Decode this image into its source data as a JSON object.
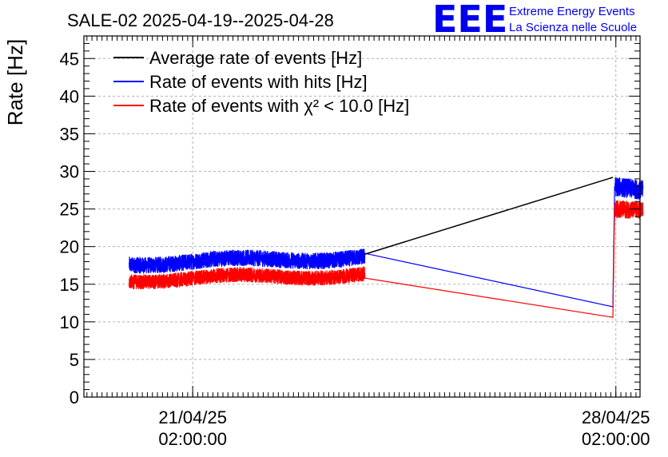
{
  "header": {
    "title": "SALE-02 2025-04-19--2025-04-28",
    "logo_letters": "EEE",
    "logo_line1": "Extreme Energy Events",
    "logo_line2": "La Scienza nelle Scuole"
  },
  "chart_data": {
    "type": "line",
    "title": "SALE-02 2025-04-19--2025-04-28",
    "xlabel": "",
    "ylabel": "Rate [Hz]",
    "ylim": [
      0,
      48
    ],
    "yticks": [
      0,
      5,
      10,
      15,
      20,
      25,
      30,
      35,
      40,
      45
    ],
    "grid": true,
    "legend_position": "top-left",
    "xlim_days": [
      -1.8,
      7.4
    ],
    "xticks": [
      {
        "day": 0,
        "line1": "21/04/25",
        "line2": "02:00:00"
      },
      {
        "day": 7,
        "line1": "28/04/25",
        "line2": "02:00:00"
      }
    ],
    "series": [
      {
        "name": "Average rate of events [Hz]",
        "color": "#000000",
        "x": [
          2.85,
          6.95
        ],
        "y": [
          19.0,
          29.2
        ]
      },
      {
        "name": "Rate of events with hits [Hz]",
        "color": "#0000ff",
        "x": [
          -1.05,
          2.85,
          6.95,
          6.98,
          7.45
        ],
        "y_mean": [
          17.8,
          18.6,
          12.0,
          28.0,
          27.5
        ],
        "noise_amplitude": 1.1
      },
      {
        "name": "Rate of events with χ² < 10.0 [Hz]",
        "color": "#ff0000",
        "x": [
          -1.05,
          2.85,
          6.95,
          6.98,
          7.45
        ],
        "y_mean": [
          15.6,
          16.3,
          10.6,
          25.0,
          24.8
        ],
        "noise_amplitude": 1.0
      }
    ],
    "legend": [
      {
        "label": "Average rate of events [Hz]",
        "color": "#000000"
      },
      {
        "label": "Rate of events with hits [Hz]",
        "color": "#0000ff"
      },
      {
        "label": "Rate of events with χ² < 10.0 [Hz]",
        "color": "#ff0000"
      }
    ]
  }
}
